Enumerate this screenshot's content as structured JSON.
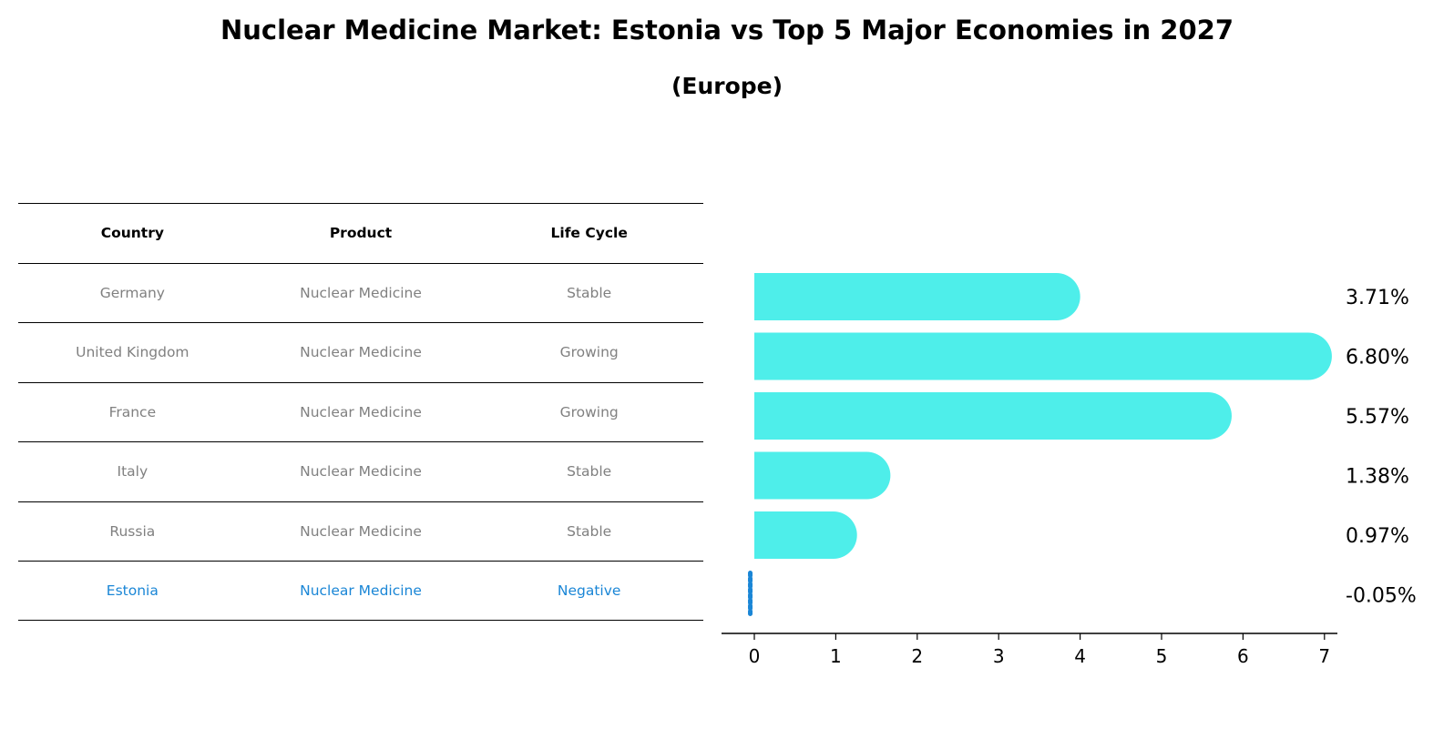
{
  "title": "Nuclear Medicine Market: Estonia vs Top 5 Major Economies in 2027",
  "subtitle": "(Europe)",
  "table": {
    "headers": [
      "Country",
      "Product",
      "Life Cycle"
    ],
    "rows": [
      [
        "Germany",
        "Nuclear Medicine",
        "Stable"
      ],
      [
        "United Kingdom",
        "Nuclear Medicine",
        "Growing"
      ],
      [
        "France",
        "Nuclear Medicine",
        "Growing"
      ],
      [
        "Italy",
        "Nuclear Medicine",
        "Stable"
      ],
      [
        "Russia",
        "Nuclear Medicine",
        "Stable"
      ],
      [
        "Estonia",
        "Nuclear Medicine",
        "Negative"
      ]
    ],
    "highlight_row": 5
  },
  "chart_data": {
    "type": "bar",
    "orientation": "horizontal",
    "categories": [
      "Germany",
      "United Kingdom",
      "France",
      "Italy",
      "Russia",
      "Estonia"
    ],
    "values": [
      3.71,
      6.8,
      5.57,
      1.38,
      0.97,
      -0.05
    ],
    "value_labels": [
      "3.71%",
      "6.80%",
      "5.57%",
      "1.38%",
      "0.97%",
      "-0.05%"
    ],
    "xlim": [
      -0.4,
      7.15
    ],
    "xticks": [
      0,
      1,
      2,
      3,
      4,
      5,
      6,
      7
    ],
    "grid": false,
    "bar_color": "#4eeeea",
    "highlight_color": "#1a86d6"
  }
}
